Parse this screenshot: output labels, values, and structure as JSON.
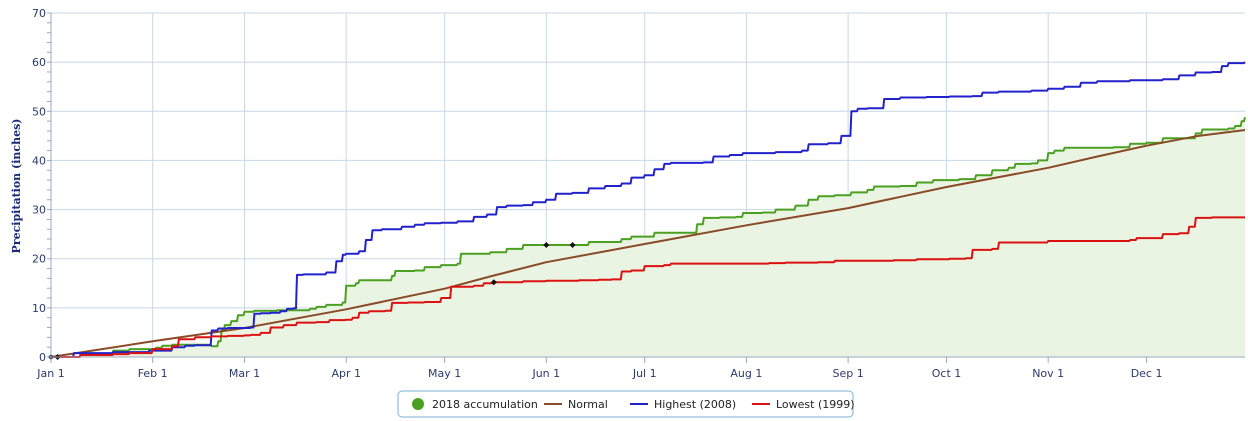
{
  "chart_data": {
    "type": "line",
    "title": "",
    "xlabel": "",
    "ylabel": "Precipitation (inches)",
    "ylim": [
      0,
      70
    ],
    "yticks": [
      0,
      10,
      20,
      30,
      40,
      50,
      60,
      70
    ],
    "xlim_day": [
      1,
      365
    ],
    "x_tick_labels": [
      "Jan 1",
      "Feb 1",
      "Mar 1",
      "Apr 1",
      "May 1",
      "Jun 1",
      "Jul 1",
      "Aug 1",
      "Sep 1",
      "Oct 1",
      "Nov 1",
      "Dec 1"
    ],
    "x_tick_days": [
      1,
      32,
      60,
      91,
      121,
      152,
      182,
      213,
      244,
      274,
      305,
      335
    ],
    "grid": true,
    "legend_position": "bottom-center",
    "series": [
      {
        "name": "2018 accumulation",
        "color": "#4aa020",
        "fill": "#eaf4e2",
        "step": true,
        "markers": [
          [
            1,
            0
          ],
          [
            152,
            22.8
          ],
          [
            160,
            22.8
          ]
        ],
        "points": [
          [
            1,
            0
          ],
          [
            10,
            0.5
          ],
          [
            20,
            1.3
          ],
          [
            25,
            1.6
          ],
          [
            33,
            1.9
          ],
          [
            35,
            2.3
          ],
          [
            38,
            2.5
          ],
          [
            45,
            2.5
          ],
          [
            50,
            2.2
          ],
          [
            52,
            3.2
          ],
          [
            53,
            5.5
          ],
          [
            54,
            6.5
          ],
          [
            56,
            7.3
          ],
          [
            58,
            8.5
          ],
          [
            60,
            9.2
          ],
          [
            63,
            9.4
          ],
          [
            70,
            9.5
          ],
          [
            80,
            9.8
          ],
          [
            82,
            10.2
          ],
          [
            85,
            10.6
          ],
          [
            90,
            11.1
          ],
          [
            91,
            14.5
          ],
          [
            94,
            15.0
          ],
          [
            95,
            15.6
          ],
          [
            100,
            15.6
          ],
          [
            105,
            16.5
          ],
          [
            106,
            17.5
          ],
          [
            112,
            17.6
          ],
          [
            115,
            18.3
          ],
          [
            120,
            18.7
          ],
          [
            125,
            19.0
          ],
          [
            126,
            21.0
          ],
          [
            130,
            21.0
          ],
          [
            135,
            21.3
          ],
          [
            140,
            22.0
          ],
          [
            145,
            22.8
          ],
          [
            152,
            22.8
          ],
          [
            160,
            22.8
          ],
          [
            165,
            23.4
          ],
          [
            170,
            23.4
          ],
          [
            175,
            24.0
          ],
          [
            178,
            24.5
          ],
          [
            182,
            24.5
          ],
          [
            185,
            25.3
          ],
          [
            195,
            25.3
          ],
          [
            198,
            27.0
          ],
          [
            200,
            28.3
          ],
          [
            205,
            28.4
          ],
          [
            210,
            28.5
          ],
          [
            212,
            29.3
          ],
          [
            218,
            29.4
          ],
          [
            222,
            30.0
          ],
          [
            228,
            30.8
          ],
          [
            232,
            32.0
          ],
          [
            235,
            32.7
          ],
          [
            240,
            32.9
          ],
          [
            245,
            33.5
          ],
          [
            250,
            34.0
          ],
          [
            252,
            34.7
          ],
          [
            260,
            34.8
          ],
          [
            265,
            35.5
          ],
          [
            270,
            36.0
          ],
          [
            278,
            36.2
          ],
          [
            283,
            37.0
          ],
          [
            288,
            38.0
          ],
          [
            293,
            38.5
          ],
          [
            295,
            39.3
          ],
          [
            300,
            39.4
          ],
          [
            302,
            40.0
          ],
          [
            305,
            41.5
          ],
          [
            307,
            42.0
          ],
          [
            310,
            42.6
          ],
          [
            315,
            42.6
          ],
          [
            325,
            42.7
          ],
          [
            330,
            43.4
          ],
          [
            335,
            43.6
          ],
          [
            340,
            44.5
          ],
          [
            348,
            44.5
          ],
          [
            350,
            45.5
          ],
          [
            352,
            46.3
          ],
          [
            360,
            46.5
          ],
          [
            362,
            47.0
          ],
          [
            364,
            48.0
          ],
          [
            365,
            48.8
          ]
        ]
      },
      {
        "name": "Normal",
        "color": "#8a4a26",
        "step": false,
        "points": [
          [
            1,
            0
          ],
          [
            32,
            3.2
          ],
          [
            60,
            5.9
          ],
          [
            91,
            9.7
          ],
          [
            121,
            13.9
          ],
          [
            135,
            16.4
          ],
          [
            152,
            19.3
          ],
          [
            182,
            23.0
          ],
          [
            213,
            26.8
          ],
          [
            244,
            30.3
          ],
          [
            260,
            32.6
          ],
          [
            274,
            34.6
          ],
          [
            305,
            38.5
          ],
          [
            320,
            40.8
          ],
          [
            335,
            43.0
          ],
          [
            350,
            44.9
          ],
          [
            365,
            46.2
          ]
        ]
      },
      {
        "name": "Highest (2008)",
        "color": "#2222cc",
        "step": true,
        "points": [
          [
            1,
            0
          ],
          [
            8,
            0.8
          ],
          [
            20,
            1.0
          ],
          [
            30,
            1.0
          ],
          [
            31,
            1.3
          ],
          [
            35,
            1.3
          ],
          [
            38,
            2.0
          ],
          [
            42,
            2.3
          ],
          [
            45,
            2.4
          ],
          [
            50,
            5.4
          ],
          [
            52,
            5.8
          ],
          [
            55,
            5.9
          ],
          [
            62,
            6.0
          ],
          [
            63,
            8.8
          ],
          [
            65,
            8.9
          ],
          [
            68,
            9.0
          ],
          [
            71,
            9.3
          ],
          [
            73,
            9.8
          ],
          [
            75,
            9.9
          ],
          [
            76,
            16.7
          ],
          [
            78,
            16.8
          ],
          [
            82,
            16.8
          ],
          [
            85,
            17.2
          ],
          [
            88,
            19.5
          ],
          [
            90,
            20.8
          ],
          [
            91,
            21.0
          ],
          [
            95,
            21.5
          ],
          [
            97,
            23.8
          ],
          [
            99,
            25.8
          ],
          [
            102,
            26.0
          ],
          [
            105,
            26.0
          ],
          [
            108,
            26.5
          ],
          [
            112,
            26.9
          ],
          [
            115,
            27.2
          ],
          [
            120,
            27.3
          ],
          [
            125,
            27.6
          ],
          [
            130,
            28.5
          ],
          [
            134,
            29.0
          ],
          [
            137,
            30.5
          ],
          [
            140,
            30.8
          ],
          [
            145,
            30.9
          ],
          [
            148,
            31.5
          ],
          [
            152,
            32.0
          ],
          [
            155,
            33.2
          ],
          [
            160,
            33.4
          ],
          [
            165,
            34.3
          ],
          [
            170,
            34.8
          ],
          [
            175,
            35.3
          ],
          [
            178,
            36.5
          ],
          [
            182,
            37.0
          ],
          [
            185,
            38.2
          ],
          [
            188,
            39.3
          ],
          [
            190,
            39.5
          ],
          [
            200,
            39.6
          ],
          [
            203,
            40.8
          ],
          [
            208,
            41.1
          ],
          [
            212,
            41.5
          ],
          [
            222,
            41.7
          ],
          [
            230,
            42.0
          ],
          [
            232,
            43.3
          ],
          [
            238,
            43.5
          ],
          [
            242,
            45.0
          ],
          [
            245,
            50.0
          ],
          [
            247,
            50.5
          ],
          [
            250,
            50.6
          ],
          [
            255,
            52.5
          ],
          [
            260,
            52.8
          ],
          [
            268,
            52.9
          ],
          [
            275,
            53.0
          ],
          [
            282,
            53.1
          ],
          [
            285,
            53.8
          ],
          [
            290,
            54.0
          ],
          [
            300,
            54.2
          ],
          [
            305,
            54.6
          ],
          [
            310,
            55.0
          ],
          [
            315,
            55.8
          ],
          [
            320,
            56.1
          ],
          [
            330,
            56.3
          ],
          [
            340,
            56.5
          ],
          [
            345,
            57.3
          ],
          [
            350,
            57.9
          ],
          [
            355,
            58.0
          ],
          [
            358,
            59.2
          ],
          [
            360,
            59.8
          ],
          [
            365,
            60.0
          ]
        ]
      },
      {
        "name": "Lowest (1999)",
        "color": "#dd1111",
        "step": true,
        "markers": [
          [
            136,
            15.2
          ]
        ],
        "points": [
          [
            1,
            0
          ],
          [
            10,
            0.4
          ],
          [
            20,
            0.6
          ],
          [
            25,
            0.8
          ],
          [
            32,
            1.6
          ],
          [
            38,
            2.2
          ],
          [
            40,
            3.6
          ],
          [
            45,
            4.0
          ],
          [
            50,
            4.2
          ],
          [
            55,
            4.3
          ],
          [
            60,
            4.4
          ],
          [
            62,
            4.5
          ],
          [
            65,
            4.9
          ],
          [
            68,
            6.0
          ],
          [
            72,
            6.5
          ],
          [
            76,
            7.0
          ],
          [
            80,
            7.0
          ],
          [
            82,
            7.1
          ],
          [
            86,
            7.5
          ],
          [
            91,
            7.6
          ],
          [
            93,
            8.0
          ],
          [
            95,
            9.0
          ],
          [
            98,
            9.3
          ],
          [
            103,
            9.4
          ],
          [
            105,
            11.0
          ],
          [
            110,
            11.1
          ],
          [
            115,
            11.2
          ],
          [
            120,
            12.0
          ],
          [
            123,
            14.3
          ],
          [
            130,
            14.5
          ],
          [
            133,
            15.0
          ],
          [
            136,
            15.2
          ],
          [
            145,
            15.4
          ],
          [
            152,
            15.5
          ],
          [
            162,
            15.6
          ],
          [
            168,
            15.7
          ],
          [
            172,
            15.8
          ],
          [
            175,
            17.4
          ],
          [
            178,
            17.6
          ],
          [
            182,
            18.5
          ],
          [
            188,
            18.7
          ],
          [
            190,
            19.0
          ],
          [
            210,
            19.0
          ],
          [
            220,
            19.1
          ],
          [
            225,
            19.2
          ],
          [
            235,
            19.3
          ],
          [
            240,
            19.6
          ],
          [
            252,
            19.6
          ],
          [
            258,
            19.7
          ],
          [
            265,
            19.9
          ],
          [
            275,
            20.0
          ],
          [
            280,
            20.1
          ],
          [
            282,
            21.8
          ],
          [
            288,
            22.0
          ],
          [
            290,
            23.3
          ],
          [
            300,
            23.3
          ],
          [
            305,
            23.6
          ],
          [
            320,
            23.6
          ],
          [
            330,
            23.8
          ],
          [
            332,
            24.2
          ],
          [
            338,
            24.2
          ],
          [
            340,
            25.0
          ],
          [
            345,
            25.2
          ],
          [
            348,
            26.5
          ],
          [
            350,
            28.3
          ],
          [
            355,
            28.4
          ],
          [
            365,
            28.4
          ]
        ]
      }
    ]
  }
}
